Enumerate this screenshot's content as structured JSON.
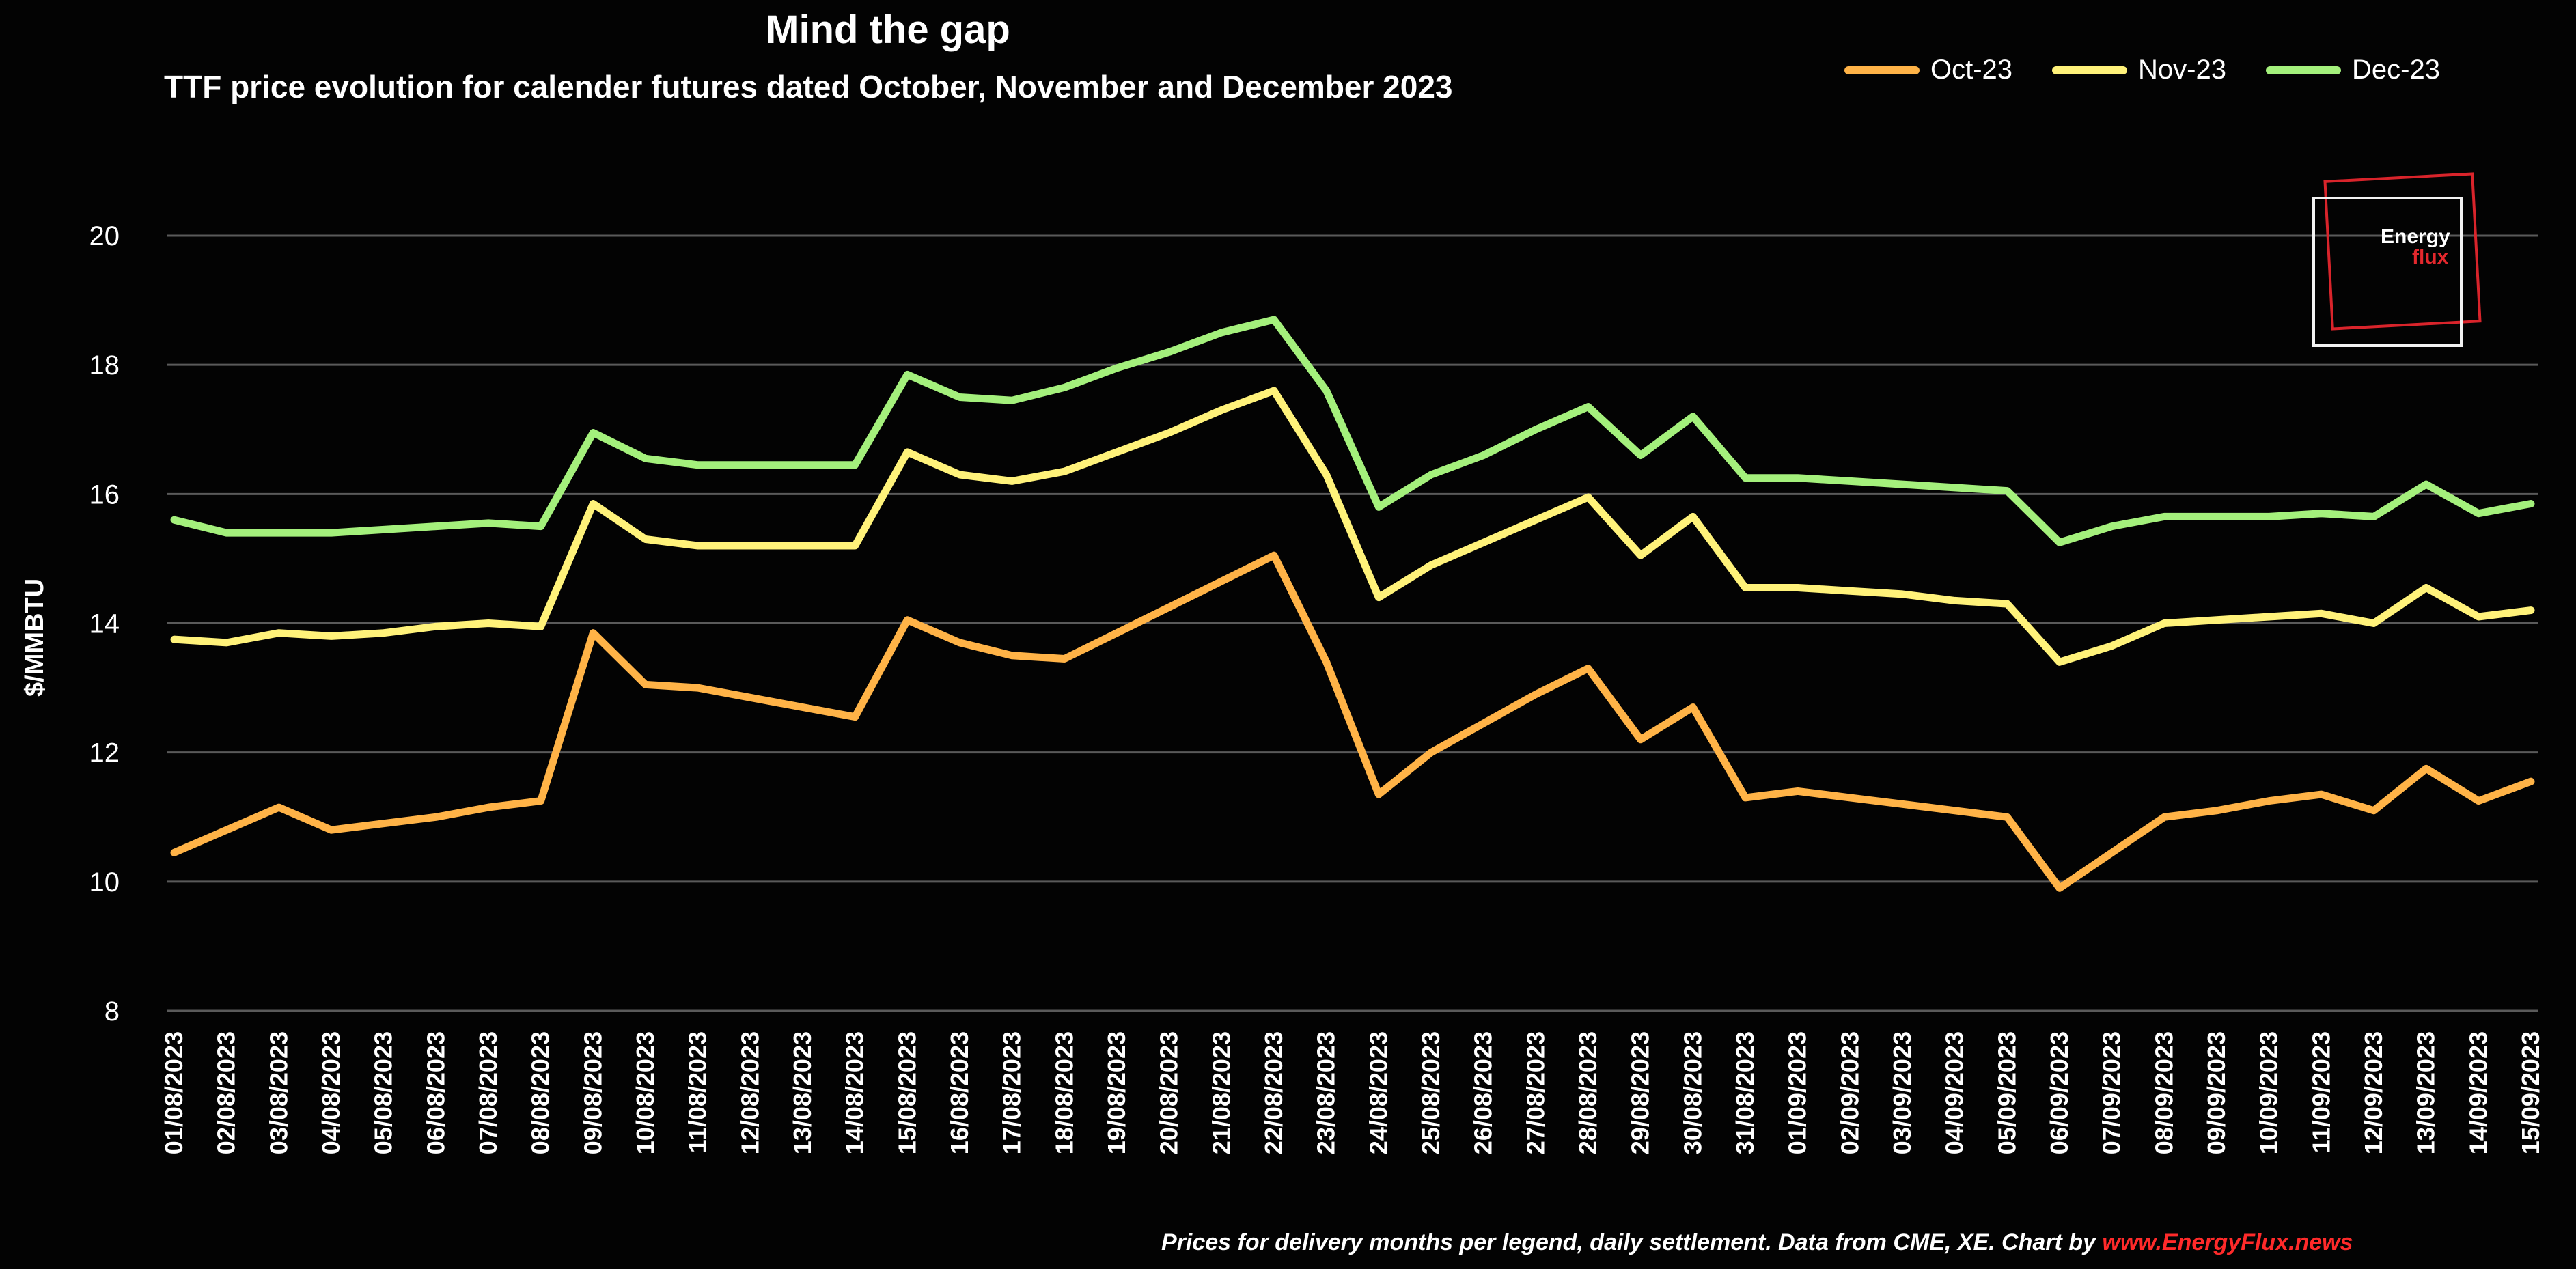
{
  "chart_data": {
    "type": "line",
    "title": "Mind the gap",
    "subtitle": "TTF price evolution for calender futures dated October, November and December 2023",
    "xlabel": "",
    "ylabel": "$/MMBTU",
    "ylim": [
      8,
      20
    ],
    "yticks": [
      8,
      10,
      12,
      14,
      16,
      18,
      20
    ],
    "grid": "horizontal",
    "legend_position": "top-right",
    "categories": [
      "01/08/2023",
      "02/08/2023",
      "03/08/2023",
      "04/08/2023",
      "05/08/2023",
      "06/08/2023",
      "07/08/2023",
      "08/08/2023",
      "09/08/2023",
      "10/08/2023",
      "11/08/2023",
      "12/08/2023",
      "13/08/2023",
      "14/08/2023",
      "15/08/2023",
      "16/08/2023",
      "17/08/2023",
      "18/08/2023",
      "19/08/2023",
      "20/08/2023",
      "21/08/2023",
      "22/08/2023",
      "23/08/2023",
      "24/08/2023",
      "25/08/2023",
      "26/08/2023",
      "27/08/2023",
      "28/08/2023",
      "29/08/2023",
      "30/08/2023",
      "31/08/2023",
      "01/09/2023",
      "02/09/2023",
      "03/09/2023",
      "04/09/2023",
      "05/09/2023",
      "06/09/2023",
      "07/09/2023",
      "08/09/2023",
      "09/09/2023",
      "10/09/2023",
      "11/09/2023",
      "12/09/2023",
      "13/09/2023",
      "14/09/2023",
      "15/09/2023"
    ],
    "series": [
      {
        "name": "Oct-23",
        "color": "#ffb347",
        "values": [
          10.45,
          10.8,
          11.15,
          10.8,
          10.9,
          11.0,
          11.15,
          11.25,
          13.85,
          13.05,
          13.0,
          12.85,
          12.7,
          12.55,
          14.05,
          13.7,
          13.5,
          13.45,
          13.85,
          14.25,
          14.65,
          15.05,
          13.4,
          11.35,
          12.0,
          12.45,
          12.9,
          13.3,
          12.2,
          12.7,
          11.3,
          11.4,
          11.3,
          11.2,
          11.1,
          11.0,
          9.9,
          10.45,
          11.0,
          11.1,
          11.25,
          11.35,
          11.1,
          11.75,
          11.25,
          11.55
        ]
      },
      {
        "name": "Nov-23",
        "color": "#fff27a",
        "values": [
          13.75,
          13.7,
          13.85,
          13.8,
          13.85,
          13.95,
          14.0,
          13.95,
          15.85,
          15.3,
          15.2,
          15.2,
          15.2,
          15.2,
          16.65,
          16.3,
          16.2,
          16.35,
          16.65,
          16.95,
          17.3,
          17.6,
          16.3,
          14.4,
          14.9,
          15.25,
          15.6,
          15.95,
          15.05,
          15.65,
          14.55,
          14.55,
          14.5,
          14.45,
          14.35,
          14.3,
          13.4,
          13.65,
          14.0,
          14.05,
          14.1,
          14.15,
          14.0,
          14.55,
          14.1,
          14.2
        ]
      },
      {
        "name": "Dec-23",
        "color": "#a4f07c",
        "values": [
          15.6,
          15.4,
          15.4,
          15.4,
          15.45,
          15.5,
          15.55,
          15.5,
          16.95,
          16.55,
          16.45,
          16.45,
          16.45,
          16.45,
          17.85,
          17.5,
          17.45,
          17.65,
          17.95,
          18.2,
          18.5,
          18.7,
          17.6,
          15.8,
          16.3,
          16.6,
          17.0,
          17.35,
          16.6,
          17.2,
          16.25,
          16.25,
          16.2,
          16.15,
          16.1,
          16.05,
          15.25,
          15.5,
          15.65,
          15.65,
          15.65,
          15.7,
          15.65,
          16.15,
          15.7,
          15.85
        ]
      }
    ]
  },
  "logo": {
    "line1": "Energy",
    "line2": "flux"
  },
  "footnote": {
    "text": "Prices for delivery months per legend, daily settlement. Data from CME, XE. Chart by",
    "link": "www.EnergyFlux.news"
  }
}
